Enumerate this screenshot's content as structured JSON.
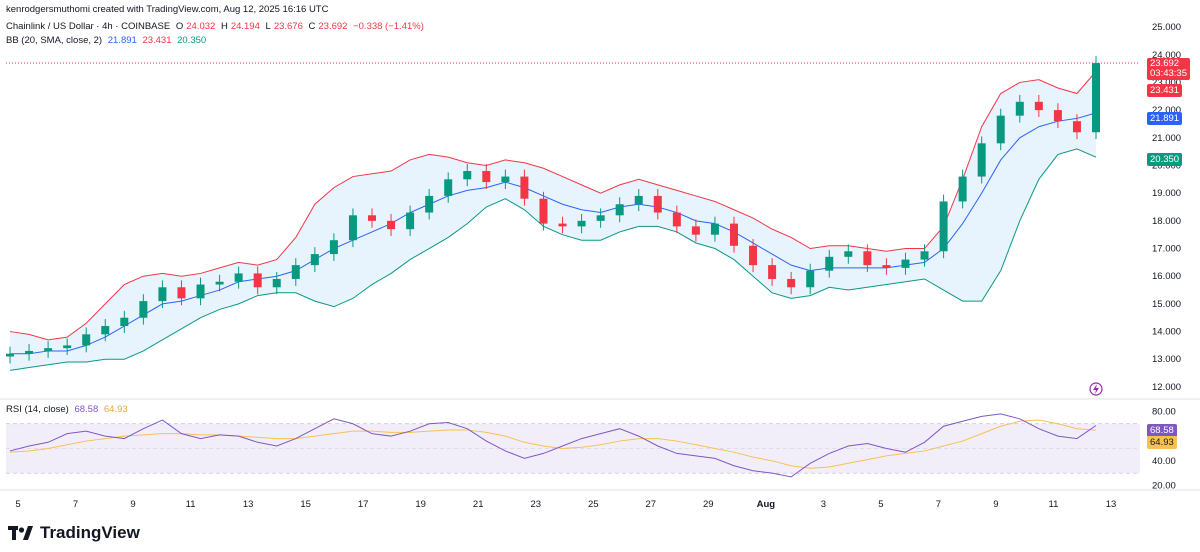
{
  "header": {
    "credit": "kenrodgersmuthomi created with TradingView.com, Aug 12, 2025 16:16 UTC",
    "symbol": "Chainlink / US Dollar · 4h · COINBASE",
    "o_label": "O",
    "o_value": "24.032",
    "h_label": "H",
    "h_value": "24.194",
    "l_label": "L",
    "l_value": "23.676",
    "c_label": "C",
    "c_value": "23.692",
    "change": "−0.338 (−1.41%)",
    "bb_label": "BB (20, SMA, close, 2)",
    "bb_basis": "21.891",
    "bb_upper": "23.431",
    "bb_lower": "20.350",
    "rsi_label": "RSI (14, close)",
    "rsi_value": "68.58",
    "rsi_ma": "64.93"
  },
  "price_tags": {
    "last": "23.692",
    "countdown": "03:43:35",
    "upper": "23.431",
    "basis": "21.891",
    "lower": "20.350",
    "rsi": "68.58",
    "rsi_ma": "64.93"
  },
  "brand": {
    "name": "TradingView",
    "logo_icon": "tradingview-logo-icon"
  },
  "colors": {
    "up": "#089981",
    "down": "#f23645",
    "basis": "#2962ff",
    "band_fill": "#e3f2fd",
    "rsi_line": "#7e57c2",
    "rsi_ma": "#f7c150",
    "rsi_fill": "#ede7f6"
  },
  "chart_data": [
    {
      "type": "line",
      "title": "Chainlink / US Dollar · 4h · COINBASE",
      "x_ticks": [
        "5",
        "7",
        "9",
        "11",
        "13",
        "15",
        "17",
        "19",
        "21",
        "23",
        "25",
        "27",
        "29",
        "Aug",
        "3",
        "5",
        "7",
        "9",
        "11",
        "13"
      ],
      "y_ticks": [
        "25.000",
        "24.000",
        "23.000",
        "22.000",
        "21.000",
        "20.000",
        "19.000",
        "18.000",
        "17.000",
        "16.000",
        "15.000",
        "14.000",
        "13.000",
        "12.000"
      ],
      "ylim": [
        11.6,
        25.4
      ],
      "series": [
        {
          "name": "Close",
          "values": [
            13.2,
            13.3,
            13.4,
            13.5,
            13.9,
            14.2,
            14.5,
            15.1,
            15.6,
            15.2,
            15.7,
            15.8,
            16.1,
            15.6,
            15.9,
            16.4,
            16.8,
            17.3,
            18.2,
            18.0,
            17.7,
            18.3,
            18.9,
            19.5,
            19.8,
            19.4,
            19.6,
            18.8,
            17.9,
            17.8,
            18.0,
            18.2,
            18.6,
            18.9,
            18.3,
            17.8,
            17.5,
            17.9,
            17.1,
            16.4,
            15.9,
            15.6,
            16.2,
            16.7,
            16.9,
            16.4,
            16.3,
            16.6,
            16.9,
            18.7,
            19.6,
            20.8,
            21.8,
            22.3,
            22.0,
            21.6,
            21.2,
            23.7
          ]
        },
        {
          "name": "BB Upper",
          "values": [
            14.0,
            13.9,
            13.7,
            13.8,
            14.3,
            15.0,
            15.7,
            16.0,
            16.1,
            16.0,
            16.1,
            16.3,
            16.5,
            16.4,
            16.6,
            17.4,
            18.6,
            19.2,
            19.6,
            19.7,
            19.8,
            20.2,
            20.4,
            20.3,
            20.1,
            20.0,
            20.2,
            20.1,
            19.9,
            19.6,
            19.3,
            19.0,
            19.3,
            19.5,
            19.3,
            19.1,
            18.9,
            18.7,
            18.4,
            18.1,
            17.7,
            17.4,
            17.0,
            17.1,
            17.1,
            17.0,
            16.9,
            17.0,
            17.0,
            17.8,
            19.5,
            21.4,
            22.6,
            23.0,
            23.1,
            22.8,
            22.6,
            23.4
          ]
        },
        {
          "name": "BB Basis",
          "values": [
            13.2,
            13.2,
            13.3,
            13.3,
            13.5,
            13.8,
            14.2,
            14.6,
            15.0,
            15.1,
            15.3,
            15.5,
            15.8,
            15.9,
            16.0,
            16.2,
            16.6,
            17.0,
            17.3,
            17.6,
            17.9,
            18.3,
            18.6,
            18.9,
            19.1,
            19.2,
            19.4,
            19.2,
            18.9,
            18.6,
            18.4,
            18.3,
            18.5,
            18.6,
            18.5,
            18.3,
            18.0,
            17.9,
            17.6,
            17.2,
            16.8,
            16.4,
            16.2,
            16.3,
            16.3,
            16.3,
            16.3,
            16.4,
            16.5,
            17.0,
            17.9,
            19.0,
            20.2,
            21.0,
            21.4,
            21.6,
            21.7,
            21.9
          ]
        },
        {
          "name": "BB Lower",
          "values": [
            12.6,
            12.7,
            12.8,
            12.9,
            12.9,
            13.0,
            13.0,
            13.3,
            13.7,
            14.1,
            14.5,
            14.8,
            15.0,
            15.3,
            15.4,
            15.4,
            15.1,
            14.9,
            15.2,
            15.7,
            16.1,
            16.6,
            17.0,
            17.4,
            17.9,
            18.5,
            18.8,
            18.4,
            17.8,
            17.5,
            17.3,
            17.3,
            17.6,
            17.8,
            17.8,
            17.6,
            17.2,
            17.0,
            16.6,
            16.0,
            15.4,
            15.2,
            15.3,
            15.6,
            15.5,
            15.6,
            15.7,
            15.8,
            15.9,
            15.5,
            15.1,
            15.1,
            16.2,
            18.0,
            19.5,
            20.4,
            20.6,
            20.3
          ]
        }
      ]
    },
    {
      "type": "line",
      "title": "RSI (14, close)",
      "y_ticks": [
        "80.00",
        "60.00",
        "40.00",
        "20.00"
      ],
      "ylim": [
        18,
        86
      ],
      "bands": [
        70,
        50,
        30
      ],
      "series": [
        {
          "name": "RSI",
          "values": [
            48,
            52,
            55,
            62,
            64,
            60,
            58,
            66,
            73,
            62,
            58,
            61,
            60,
            55,
            52,
            58,
            66,
            74,
            70,
            62,
            60,
            64,
            70,
            71,
            66,
            56,
            48,
            42,
            46,
            52,
            58,
            62,
            66,
            60,
            52,
            46,
            44,
            42,
            36,
            32,
            30,
            27,
            38,
            46,
            52,
            54,
            50,
            47,
            55,
            68,
            72,
            76,
            78,
            74,
            66,
            60,
            58,
            68.6
          ]
        },
        {
          "name": "RSI MA",
          "values": [
            47,
            48,
            50,
            53,
            56,
            58,
            60,
            61,
            62,
            62,
            61,
            61,
            60,
            59,
            58,
            58,
            60,
            62,
            64,
            64,
            63,
            63,
            64,
            65,
            65,
            63,
            60,
            55,
            52,
            50,
            51,
            53,
            56,
            58,
            58,
            56,
            53,
            50,
            47,
            43,
            40,
            36,
            34,
            35,
            38,
            41,
            44,
            46,
            48,
            52,
            56,
            62,
            68,
            72,
            73,
            70,
            66,
            64.9
          ]
        }
      ]
    }
  ]
}
